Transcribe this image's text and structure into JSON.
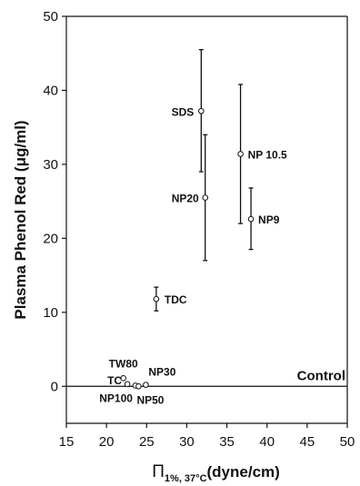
{
  "chart_data": {
    "type": "scatter",
    "xlabel_symbol": "Π",
    "xlabel_subscript": "1%, 37°C",
    "xlabel_unit": "(dyne/cm)",
    "ylabel": "Plasma Phenol Red (μg/ml)",
    "xlim": [
      15,
      50
    ],
    "ylim": [
      -5,
      50
    ],
    "x_ticks": [
      "15",
      "20",
      "25",
      "30",
      "35",
      "40",
      "45",
      "50"
    ],
    "y_ticks": [
      "0",
      "10",
      "20",
      "30",
      "40",
      "50"
    ],
    "reference_line": {
      "y": 0,
      "label": "Control"
    },
    "points": [
      {
        "label": "SDS",
        "x": 31.8,
        "y": 37.2,
        "err_low": 29.0,
        "err_high": 45.5
      },
      {
        "label": "NP 10.5",
        "x": 36.7,
        "y": 31.4,
        "err_low": 22.0,
        "err_high": 40.8
      },
      {
        "label": "NP20",
        "x": 32.3,
        "y": 25.5,
        "err_low": 17.0,
        "err_high": 34.0
      },
      {
        "label": "NP9",
        "x": 38.0,
        "y": 22.6,
        "err_low": 18.5,
        "err_high": 26.8
      },
      {
        "label": "TDC",
        "x": 26.2,
        "y": 11.8,
        "err_low": 10.2,
        "err_high": 13.4
      },
      {
        "label": "TW80",
        "x": 22.1,
        "y": 1.1
      },
      {
        "label": "TC",
        "x": 22.6,
        "y": 0.3
      },
      {
        "label": "NP30",
        "x": 24.9,
        "y": 0.2
      },
      {
        "label": "NP100",
        "x": 23.6,
        "y": 0.1
      },
      {
        "label": "NP50",
        "x": 24.0,
        "y": 0.0
      }
    ]
  }
}
